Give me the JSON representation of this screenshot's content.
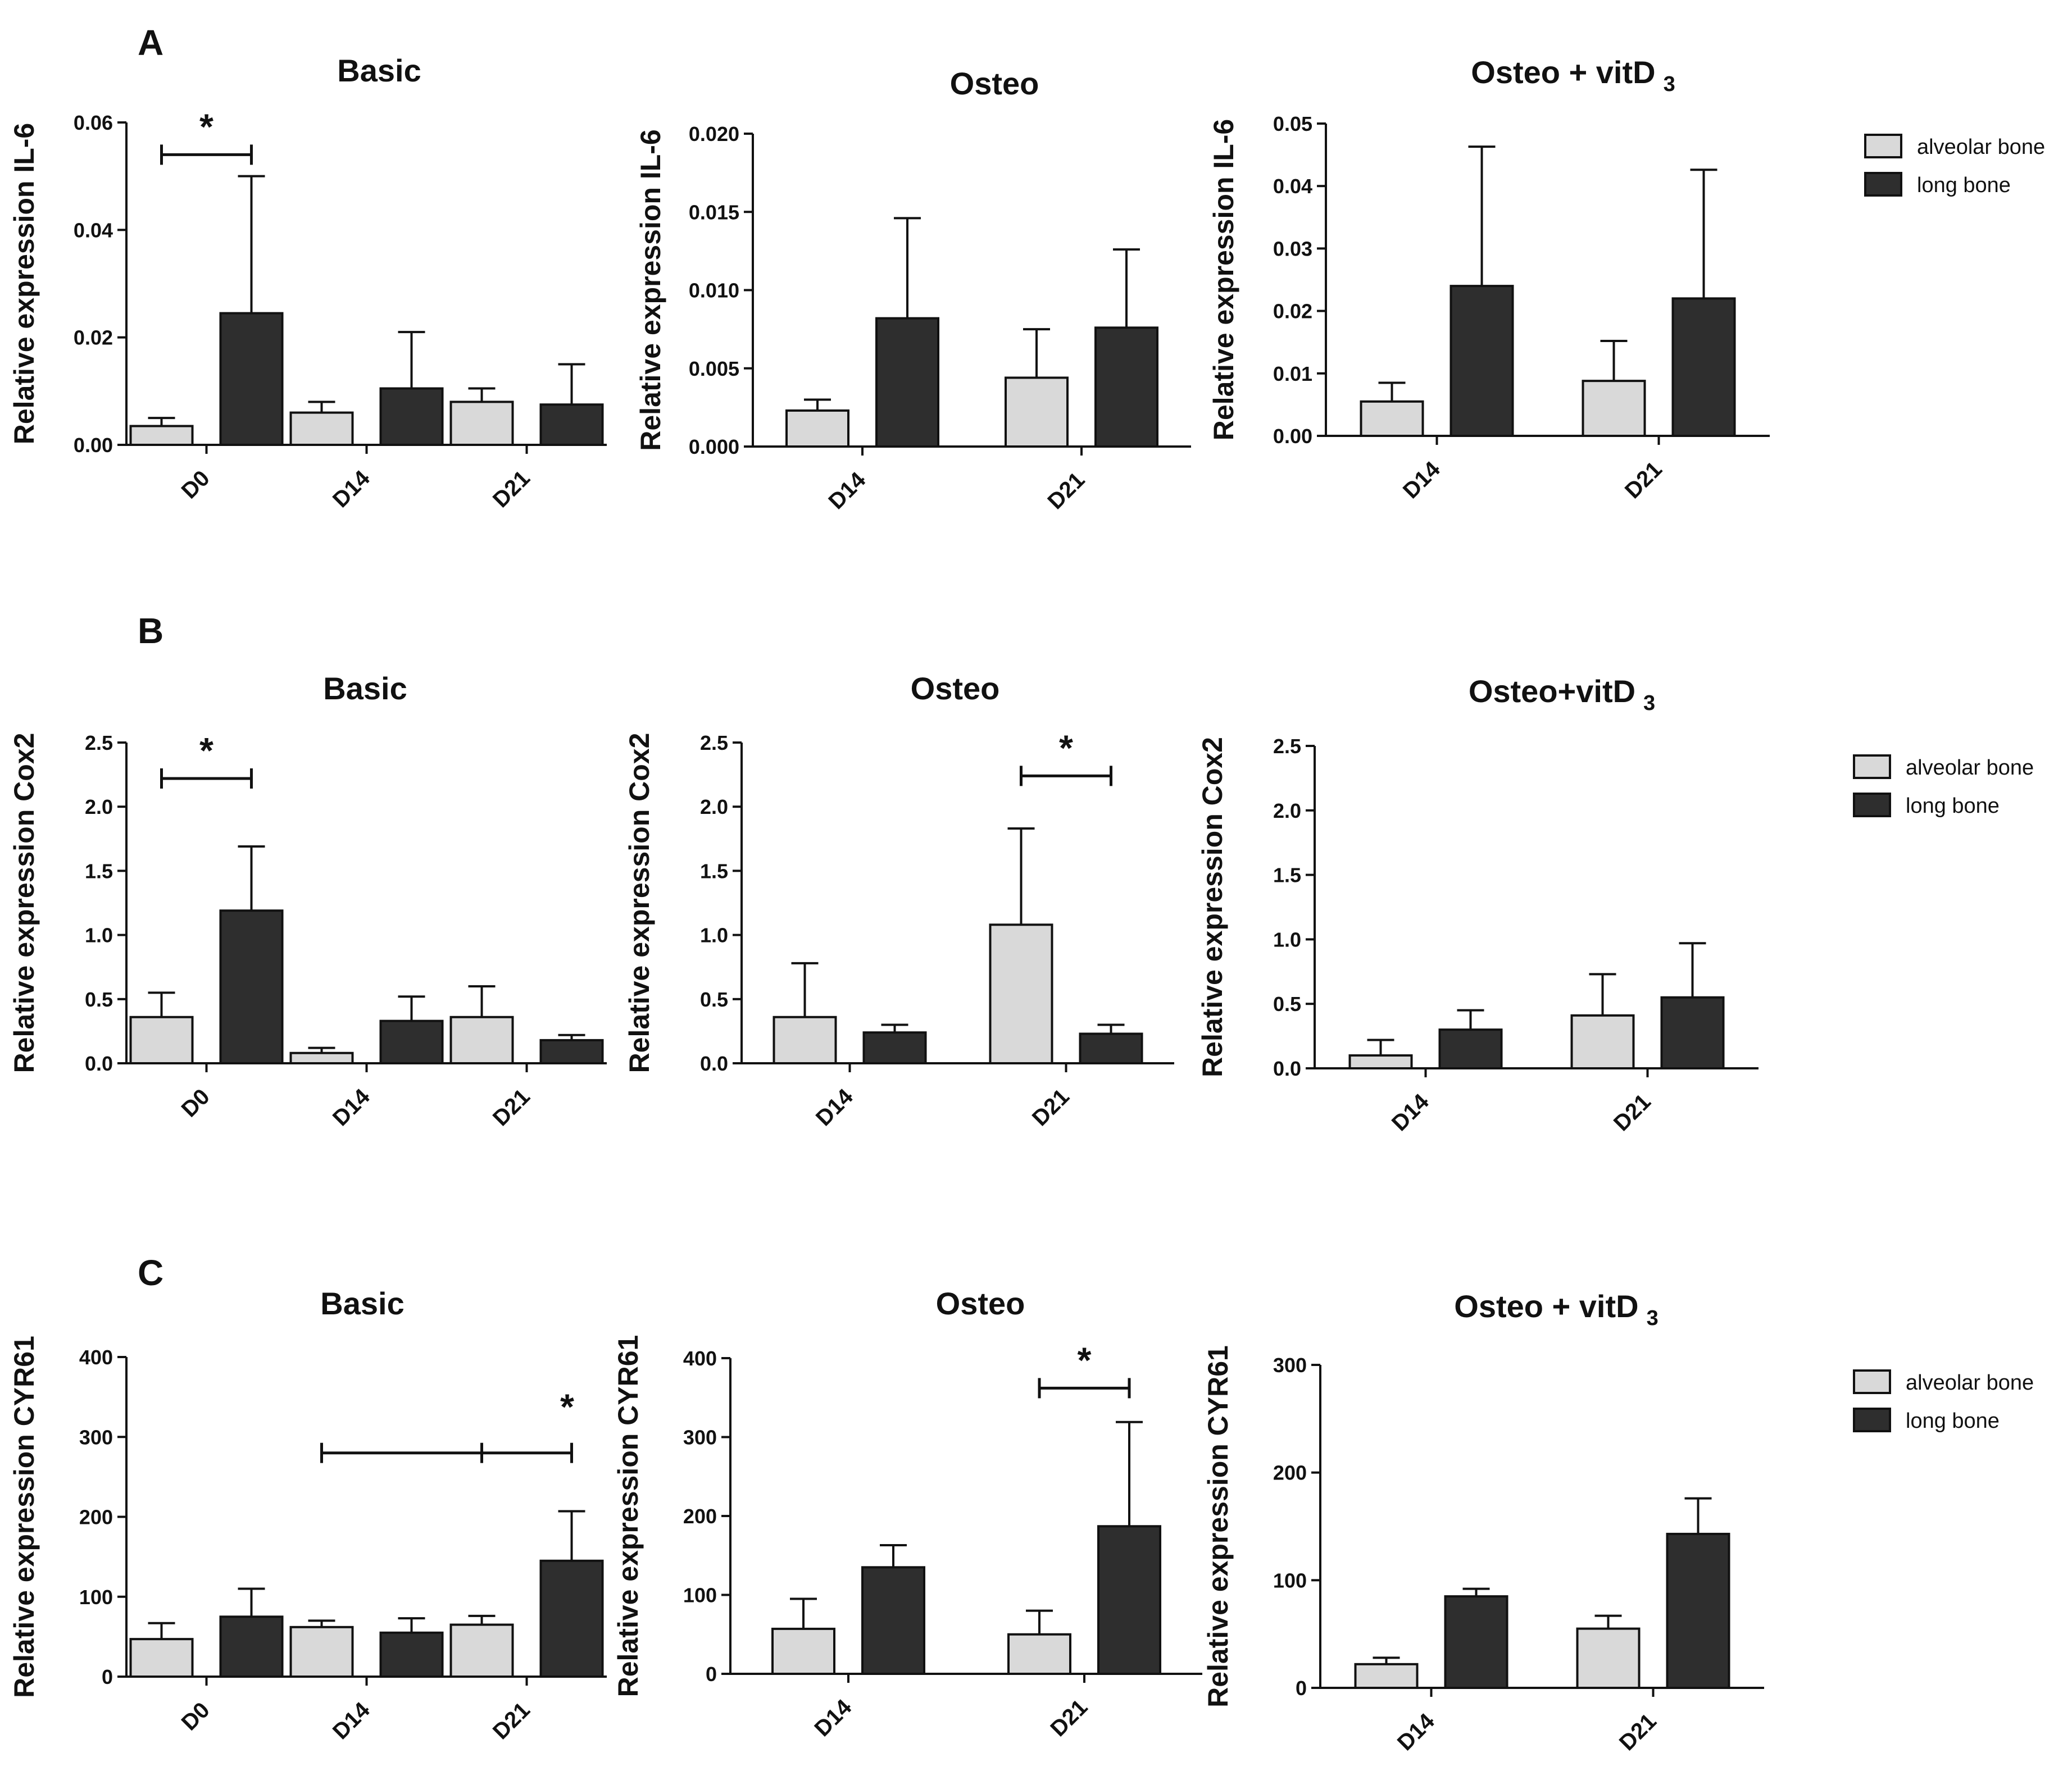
{
  "panels": [
    {
      "letter": "A"
    },
    {
      "letter": "B"
    },
    {
      "letter": "C"
    }
  ],
  "legend": {
    "items": [
      {
        "label": "alveolar bone",
        "color": "#d9d9d9"
      },
      {
        "label": "long bone",
        "color": "#2e2e2e"
      }
    ]
  },
  "colors": {
    "alveolar": "#d9d9d9",
    "long": "#2e2e2e",
    "axis": "#111111"
  },
  "chart_data": [
    {
      "type": "bar",
      "panel": "A",
      "title": "Basic",
      "title_sub": "",
      "ylabel": "Relative expression IL-6",
      "ylim": [
        0,
        0.06
      ],
      "yticks": [
        "0.00",
        "0.02",
        "0.04",
        "0.06"
      ],
      "categories": [
        "D0",
        "D14",
        "D21"
      ],
      "series": [
        {
          "name": "alveolar bone",
          "values": [
            0.0035,
            0.006,
            0.008
          ],
          "errors": [
            0.0015,
            0.002,
            0.0025
          ]
        },
        {
          "name": "long bone",
          "values": [
            0.0245,
            0.0105,
            0.0075
          ],
          "errors": [
            0.0255,
            0.0105,
            0.0075
          ]
        }
      ],
      "significance": [
        {
          "label": "*",
          "category": 0,
          "from_series": 0,
          "to_series": 1,
          "level": 0.054
        }
      ]
    },
    {
      "type": "bar",
      "panel": "A",
      "title": "Osteo",
      "title_sub": "",
      "ylabel": "Relative expression IL-6",
      "ylim": [
        0,
        0.02
      ],
      "yticks": [
        "0.000",
        "0.005",
        "0.010",
        "0.015",
        "0.020"
      ],
      "categories": [
        "D14",
        "D21"
      ],
      "series": [
        {
          "name": "alveolar bone",
          "values": [
            0.0023,
            0.0044
          ],
          "errors": [
            0.0007,
            0.0031
          ]
        },
        {
          "name": "long bone",
          "values": [
            0.0082,
            0.0076
          ],
          "errors": [
            0.0064,
            0.005
          ]
        }
      ],
      "significance": []
    },
    {
      "type": "bar",
      "panel": "A",
      "title": "Osteo + vitD",
      "title_sub": "3",
      "ylabel": "Relative expression IL-6",
      "ylim": [
        0,
        0.05
      ],
      "yticks": [
        "0.00",
        "0.01",
        "0.02",
        "0.03",
        "0.04",
        "0.05"
      ],
      "categories": [
        "D14",
        "D21"
      ],
      "series": [
        {
          "name": "alveolar bone",
          "values": [
            0.0055,
            0.0088
          ],
          "errors": [
            0.003,
            0.0064
          ]
        },
        {
          "name": "long bone",
          "values": [
            0.024,
            0.022
          ],
          "errors": [
            0.0223,
            0.0206
          ]
        }
      ],
      "significance": []
    },
    {
      "type": "bar",
      "panel": "B",
      "title": "Basic",
      "title_sub": "",
      "ylabel": "Relative expression Cox2",
      "ylim": [
        0,
        2.5
      ],
      "yticks": [
        "0.0",
        "0.5",
        "1.0",
        "1.5",
        "2.0",
        "2.5"
      ],
      "categories": [
        "D0",
        "D14",
        "D21"
      ],
      "series": [
        {
          "name": "alveolar bone",
          "values": [
            0.36,
            0.08,
            0.36
          ],
          "errors": [
            0.19,
            0.04,
            0.24
          ]
        },
        {
          "name": "long bone",
          "values": [
            1.19,
            0.33,
            0.18
          ],
          "errors": [
            0.5,
            0.19,
            0.04
          ]
        }
      ],
      "significance": [
        {
          "label": "*",
          "category": 0,
          "from_series": 0,
          "to_series": 1,
          "level": 2.22
        }
      ]
    },
    {
      "type": "bar",
      "panel": "B",
      "title": "Osteo",
      "title_sub": "",
      "ylabel": "Relative expression Cox2",
      "ylim": [
        0,
        2.5
      ],
      "yticks": [
        "0.0",
        "0.5",
        "1.0",
        "1.5",
        "2.0",
        "2.5"
      ],
      "categories": [
        "D14",
        "D21"
      ],
      "series": [
        {
          "name": "alveolar bone",
          "values": [
            0.36,
            1.08
          ],
          "errors": [
            0.42,
            0.75
          ]
        },
        {
          "name": "long bone",
          "values": [
            0.24,
            0.23
          ],
          "errors": [
            0.06,
            0.07
          ]
        }
      ],
      "significance": [
        {
          "label": "*",
          "category": 1,
          "from_series": 0,
          "to_series": 1,
          "level": 2.24
        }
      ]
    },
    {
      "type": "bar",
      "panel": "B",
      "title": "Osteo+vitD",
      "title_sub": "3",
      "ylabel": "Relative expression Cox2",
      "ylim": [
        0,
        2.5
      ],
      "yticks": [
        "0.0",
        "0.5",
        "1.0",
        "1.5",
        "2.0",
        "2.5"
      ],
      "categories": [
        "D14",
        "D21"
      ],
      "series": [
        {
          "name": "alveolar bone",
          "values": [
            0.1,
            0.41
          ],
          "errors": [
            0.12,
            0.32
          ]
        },
        {
          "name": "long bone",
          "values": [
            0.3,
            0.55
          ],
          "errors": [
            0.15,
            0.42
          ]
        }
      ],
      "significance": []
    },
    {
      "type": "bar",
      "panel": "C",
      "title": "Basic",
      "title_sub": "",
      "ylabel": "Relative expression CYR61",
      "ylim": [
        0,
        400
      ],
      "yticks": [
        "0",
        "100",
        "200",
        "300",
        "400"
      ],
      "categories": [
        "D0",
        "D14",
        "D21"
      ],
      "series": [
        {
          "name": "alveolar bone",
          "values": [
            47,
            62,
            65
          ],
          "errors": [
            20,
            8,
            11
          ]
        },
        {
          "name": "long bone",
          "values": [
            75,
            55,
            145
          ],
          "errors": [
            35,
            18,
            62
          ]
        }
      ],
      "significance": [
        {
          "label": "*",
          "from_category": 1,
          "from_series": 0,
          "to_category": 2,
          "to_series": 1,
          "mid_category": 2,
          "mid_series": 0,
          "level": 280
        }
      ]
    },
    {
      "type": "bar",
      "panel": "C",
      "title": "Osteo",
      "title_sub": "",
      "ylabel": "Relative expression CYR61",
      "ylim": [
        0,
        400
      ],
      "yticks": [
        "0",
        "100",
        "200",
        "300",
        "400"
      ],
      "categories": [
        "D14",
        "D21"
      ],
      "series": [
        {
          "name": "alveolar bone",
          "values": [
            57,
            50
          ],
          "errors": [
            38,
            30
          ]
        },
        {
          "name": "long bone",
          "values": [
            135,
            187
          ],
          "errors": [
            28,
            132
          ]
        }
      ],
      "significance": [
        {
          "label": "*",
          "category": 1,
          "from_series": 0,
          "to_series": 1,
          "level": 362
        }
      ]
    },
    {
      "type": "bar",
      "panel": "C",
      "title": "Osteo + vitD",
      "title_sub": "3",
      "ylabel": "Relative expression CYR61",
      "ylim": [
        0,
        300
      ],
      "yticks": [
        "0",
        "100",
        "200",
        "300"
      ],
      "categories": [
        "D14",
        "D21"
      ],
      "series": [
        {
          "name": "alveolar bone",
          "values": [
            22,
            55
          ],
          "errors": [
            6,
            12
          ]
        },
        {
          "name": "long bone",
          "values": [
            85,
            143
          ],
          "errors": [
            7,
            33
          ]
        }
      ],
      "significance": []
    }
  ]
}
